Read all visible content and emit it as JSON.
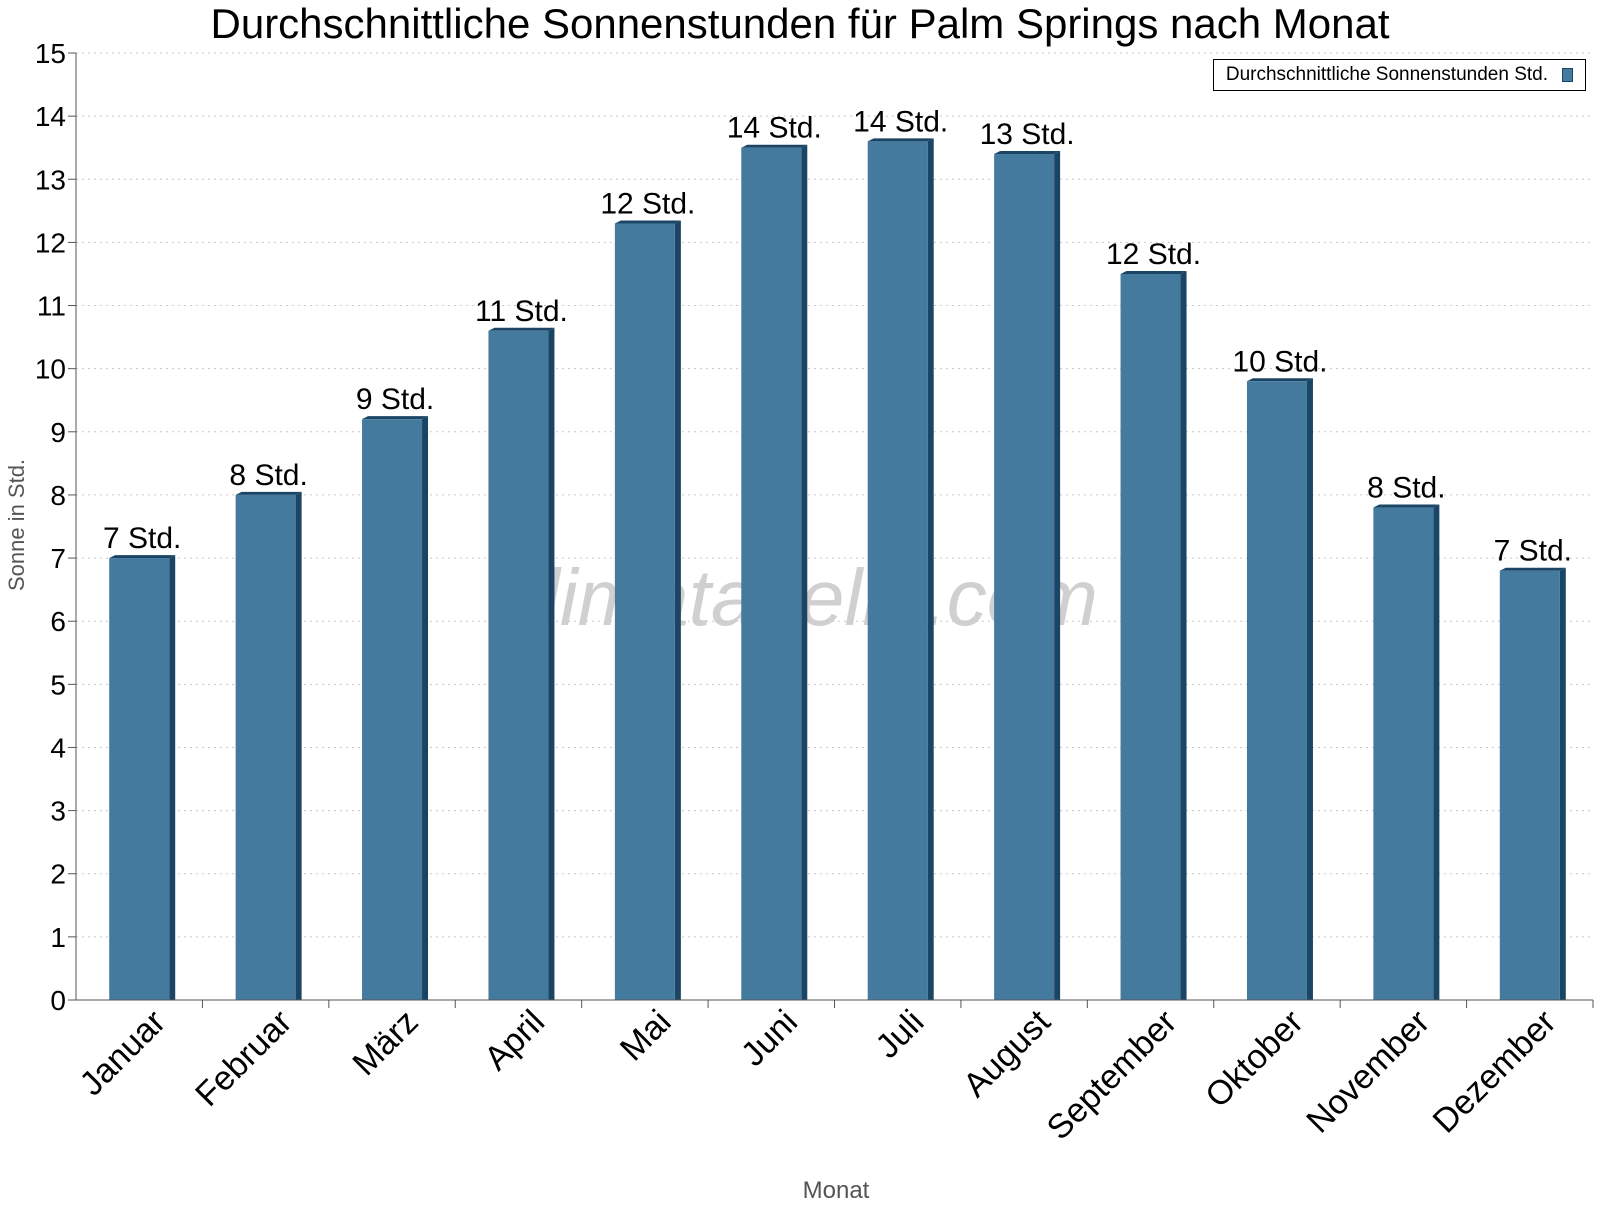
{
  "chart_data": {
    "type": "bar",
    "title": "Durchschnittliche Sonnenstunden für Palm Springs nach Monat",
    "xlabel": "Monat",
    "ylabel": "Sonne in Std.",
    "ylim": [
      0,
      15
    ],
    "yticks": [
      0,
      1,
      2,
      3,
      4,
      5,
      6,
      7,
      8,
      9,
      10,
      11,
      12,
      13,
      14,
      15
    ],
    "grid": true,
    "legend_position": "top-right",
    "categories": [
      "Januar",
      "Februar",
      "März",
      "April",
      "Mai",
      "Juni",
      "Juli",
      "August",
      "September",
      "Oktober",
      "November",
      "Dezember"
    ],
    "series": [
      {
        "name": "Durchschnittliche Sonnenstunden Std.",
        "values": [
          7.0,
          8.0,
          9.2,
          10.6,
          12.3,
          13.5,
          13.6,
          13.4,
          11.5,
          9.8,
          7.8,
          6.8
        ],
        "labels": [
          "7 Std.",
          "8 Std.",
          "9 Std.",
          "11 Std.",
          "12 Std.",
          "14 Std.",
          "14 Std.",
          "13 Std.",
          "12 Std.",
          "10 Std.",
          "8 Std.",
          "7 Std."
        ]
      }
    ],
    "watermark": "klimatabelle.com"
  },
  "colors": {
    "bar": "#447a9e",
    "bar_side": "#1b4565",
    "grid": "#c8c8c8",
    "watermark": "#c8c8c8",
    "axis_title": "#555555"
  }
}
